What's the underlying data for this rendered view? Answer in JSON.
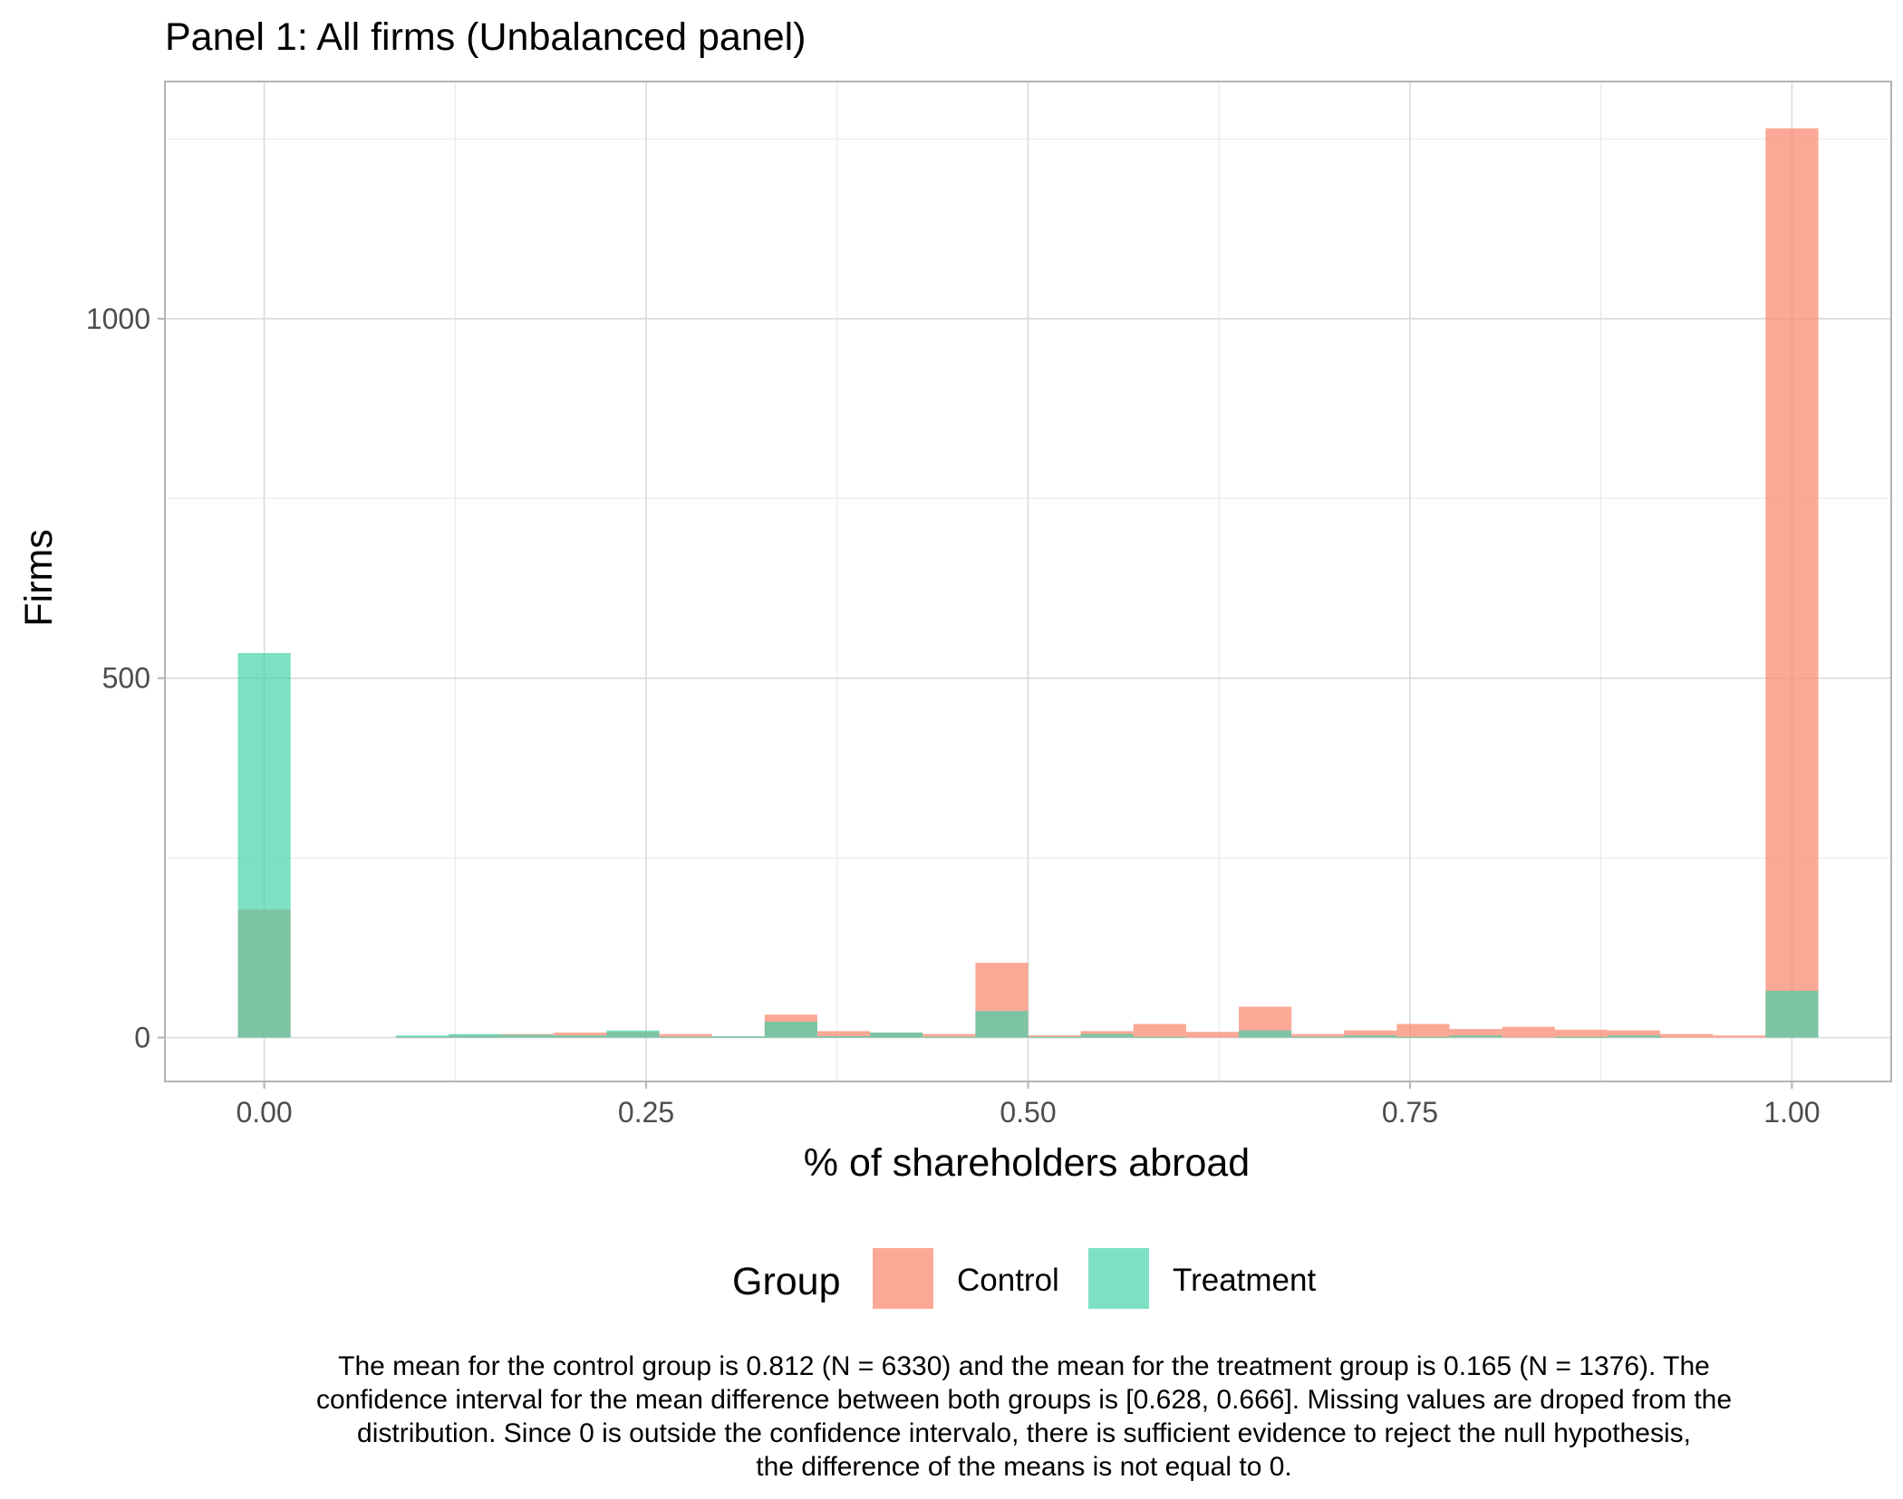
{
  "chart_data": {
    "type": "bar",
    "title": "Panel 1: All firms (Unbalanced panel)",
    "xlabel": "% of shareholders abroad",
    "ylabel": "Firms",
    "xlim": [
      -0.065,
      1.065
    ],
    "ylim": [
      -61,
      1330
    ],
    "x_ticks": [
      0.0,
      0.25,
      0.5,
      0.75,
      1.0
    ],
    "x_tick_labels": [
      "0.00",
      "0.25",
      "0.50",
      "0.75",
      "1.00"
    ],
    "y_ticks": [
      0,
      500,
      1000
    ],
    "y_tick_labels": [
      "0",
      "500",
      "1000"
    ],
    "grid": true,
    "bin_width": 0.0345,
    "x": [
      0.0,
      0.0345,
      0.069,
      0.1034,
      0.1379,
      0.1724,
      0.2069,
      0.2414,
      0.2759,
      0.3103,
      0.3448,
      0.3793,
      0.4138,
      0.4483,
      0.4828,
      0.5172,
      0.5517,
      0.5862,
      0.6207,
      0.6552,
      0.6897,
      0.7241,
      0.7586,
      0.7931,
      0.8276,
      0.8621,
      0.8966,
      0.931,
      0.9655,
      1.0
    ],
    "series": [
      {
        "name": "Control",
        "color": "#fa8c73",
        "values": [
          178,
          0,
          0,
          1,
          3,
          5,
          7,
          8,
          5,
          1,
          32,
          9,
          7,
          5,
          104,
          3,
          9,
          19,
          8,
          43,
          5,
          10,
          19,
          12,
          15,
          11,
          10,
          5,
          3,
          1265
        ]
      },
      {
        "name": "Treatment",
        "color": "#40d1aa",
        "values": [
          535,
          0,
          0,
          3,
          5,
          4,
          3,
          10,
          1,
          2,
          22,
          2,
          7,
          1,
          37,
          1,
          5,
          1,
          0,
          10,
          1,
          3,
          1,
          3,
          0,
          1,
          3,
          0,
          0,
          65
        ]
      }
    ],
    "legend": {
      "title": "Group",
      "position": "bottom",
      "entries": [
        "Control",
        "Treatment"
      ]
    },
    "caption": [
      "The mean for the control group is 0.812 (N = 6330) and the mean for the treatment group is 0.165 (N = 1376). The",
      "confidence interval for the mean difference between both groups is [0.628, 0.666]. Missing values are droped from the",
      "distribution. Since 0 is outside the confidence intervalo, there is sufficient evidence to reject the null hypothesis,",
      "the difference of the means is not equal to 0."
    ]
  },
  "colors": {
    "panel_border": "#b3b3b3",
    "grid_major": "#dcdcdc",
    "grid_minor": "#ececec",
    "tick_text": "#4d4d4d"
  }
}
